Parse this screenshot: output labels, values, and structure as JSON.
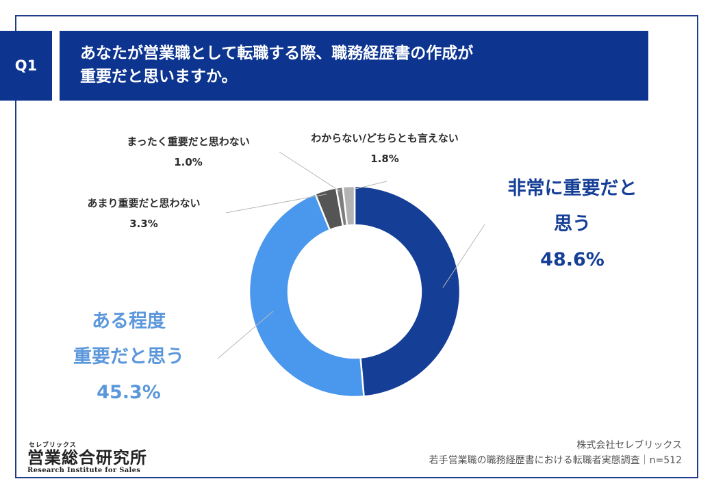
{
  "question": {
    "badge": "Q1",
    "line1": "あなたが営業職として転職する際、職務経歴書の作成が",
    "line2": "重要だと思いますか。"
  },
  "chart_data": {
    "type": "pie",
    "donut": true,
    "slices": [
      {
        "label": "非常に重要だと思う",
        "label_lines": [
          "非常に重要だと",
          "思う"
        ],
        "value": 48.6,
        "display": "48.6%",
        "color": "#153e96"
      },
      {
        "label": "ある程度重要だと思う",
        "label_lines": [
          "ある程度",
          "重要だと思う"
        ],
        "value": 45.3,
        "display": "45.3%",
        "color": "#4a97ee"
      },
      {
        "label": "あまり重要だと思わない",
        "label_lines": [
          "あまり重要だと思わない"
        ],
        "value": 3.3,
        "display": "3.3%",
        "color": "#555555"
      },
      {
        "label": "まったく重要だと思わない",
        "label_lines": [
          "まったく重要だと思わない"
        ],
        "value": 1.0,
        "display": "1.0%",
        "color": "#7d7d7d"
      },
      {
        "label": "わからない/どちらとも言えない",
        "label_lines": [
          "わからない/どちらとも言えない"
        ],
        "value": 1.8,
        "display": "1.8%",
        "color": "#b3b3b3"
      }
    ]
  },
  "logo": {
    "kana": "セレブリックス",
    "name": "営業総合研究所",
    "en": "Research Institute for Sales"
  },
  "footer": {
    "company": "株式会社セレブリックス",
    "survey": "若手営業職の職務経歴書における転職者実態調査｜n=512"
  }
}
